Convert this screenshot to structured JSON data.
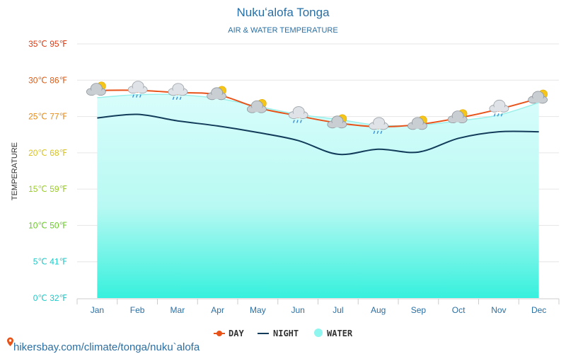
{
  "chart_data": {
    "type": "line",
    "title": "Nukuʻalofa Tonga",
    "subtitle": "AIR & WATER TEMPERATURE",
    "ylabel": "TEMPERATURE",
    "ylim": [
      0,
      35
    ],
    "yticks": [
      {
        "value": 0,
        "label": "0℃ 32℉",
        "color": "#1ec9c9"
      },
      {
        "value": 5,
        "label": "5℃ 41℉",
        "color": "#1ec9c9"
      },
      {
        "value": 10,
        "label": "10℃ 50℉",
        "color": "#66cc22"
      },
      {
        "value": 15,
        "label": "15℃ 59℉",
        "color": "#99cc22"
      },
      {
        "value": 20,
        "label": "20℃ 68℉",
        "color": "#d9c21c"
      },
      {
        "value": 25,
        "label": "25℃ 77℉",
        "color": "#e88a10"
      },
      {
        "value": 30,
        "label": "30℃ 86℉",
        "color": "#e05a10"
      },
      {
        "value": 35,
        "label": "35℃ 95℉",
        "color": "#e03a10"
      }
    ],
    "categories": [
      "Jan",
      "Feb",
      "Mar",
      "Apr",
      "May",
      "Jun",
      "Jul",
      "Aug",
      "Sep",
      "Oct",
      "Nov",
      "Dec"
    ],
    "grid": true,
    "legend_position": "bottom",
    "series": [
      {
        "name": "DAY",
        "kind": "line-markers",
        "color": "#e8531a",
        "values": [
          28.6,
          28.6,
          28.3,
          28.0,
          26.2,
          25.1,
          24.1,
          23.6,
          23.9,
          24.8,
          26.0,
          27.5
        ]
      },
      {
        "name": "NIGHT",
        "kind": "line",
        "color": "#123c5a",
        "values": [
          24.8,
          25.3,
          24.4,
          23.7,
          22.8,
          21.7,
          19.8,
          20.5,
          20.1,
          22.0,
          22.9,
          22.9
        ]
      },
      {
        "name": "WATER",
        "kind": "area",
        "color": "#8ff5ef",
        "values": [
          27.6,
          28.0,
          28.0,
          27.5,
          26.4,
          25.3,
          24.6,
          23.8,
          23.8,
          24.4,
          25.2,
          26.9
        ]
      }
    ],
    "weather_icons": [
      "partly-cloudy-icon",
      "rain-cloud-icon",
      "rain-cloud-icon",
      "partly-cloudy-icon",
      "partly-cloudy-icon",
      "rain-cloud-icon",
      "partly-cloudy-icon",
      "rain-cloud-icon",
      "partly-cloudy-icon",
      "partly-cloudy-icon",
      "rain-cloud-icon",
      "partly-cloudy-icon"
    ]
  },
  "legend": {
    "day": "DAY",
    "night": "NIGHT",
    "water": "WATER"
  },
  "source": "hikersbay.com/climate/tonga/nuku`alofa",
  "icons": {
    "source": "map-pin-icon"
  },
  "colors": {
    "title": "#2a6fa3",
    "grid": "#e6e6e6"
  }
}
